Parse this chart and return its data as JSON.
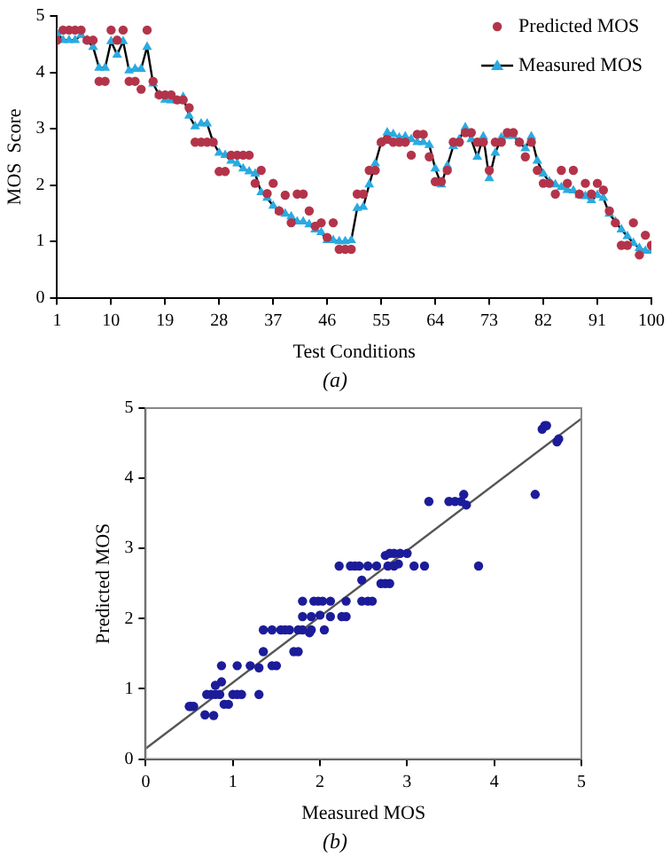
{
  "chart_data": [
    {
      "type": "line",
      "xlabel": "Test Conditions",
      "ylabel": "MOS  Score",
      "annotations": [
        "(a)"
      ],
      "x": [
        1,
        2,
        3,
        4,
        5,
        6,
        7,
        8,
        9,
        10,
        11,
        12,
        13,
        14,
        15,
        16,
        17,
        18,
        19,
        20,
        21,
        22,
        23,
        24,
        25,
        26,
        27,
        28,
        29,
        30,
        31,
        32,
        33,
        34,
        35,
        36,
        37,
        38,
        39,
        40,
        41,
        42,
        43,
        44,
        45,
        46,
        47,
        48,
        49,
        50,
        51,
        52,
        53,
        54,
        55,
        56,
        57,
        58,
        59,
        60,
        61,
        62,
        63,
        64,
        65,
        66,
        67,
        68,
        69,
        70,
        71,
        72,
        73,
        74,
        75,
        76,
        77,
        78,
        79,
        80,
        81,
        82,
        83,
        84,
        85,
        86,
        87,
        88,
        89,
        90,
        91,
        92,
        93,
        94,
        95,
        96,
        97,
        98,
        99,
        100
      ],
      "xlim": [
        1,
        100
      ],
      "xticks": [
        1,
        10,
        19,
        28,
        37,
        46,
        55,
        64,
        73,
        82,
        91,
        100
      ],
      "ylim": [
        0,
        5
      ],
      "yticks": [
        0,
        1,
        2,
        3,
        4,
        5
      ],
      "grid": false,
      "legend": "top right",
      "series": [
        {
          "name": "Predicted MOS",
          "type": "scatter",
          "marker": "circle",
          "color": "#b3344a",
          "values": [
            4.57,
            4.75,
            4.75,
            4.75,
            4.75,
            4.57,
            4.57,
            3.84,
            3.84,
            4.75,
            4.57,
            4.75,
            3.84,
            3.84,
            3.7,
            4.75,
            3.84,
            3.6,
            3.6,
            3.6,
            3.51,
            3.51,
            3.37,
            2.76,
            2.76,
            2.76,
            2.76,
            2.24,
            2.24,
            2.53,
            2.53,
            2.53,
            2.53,
            2.03,
            2.26,
            1.85,
            2.03,
            1.54,
            1.82,
            1.33,
            1.84,
            1.84,
            1.54,
            1.27,
            1.33,
            1.07,
            1.33,
            0.86,
            0.86,
            0.86,
            1.84,
            1.84,
            2.26,
            2.26,
            2.76,
            2.81,
            2.76,
            2.76,
            2.76,
            2.53,
            2.9,
            2.9,
            2.5,
            2.06,
            2.06,
            2.26,
            2.76,
            2.76,
            2.93,
            2.93,
            2.76,
            2.76,
            2.26,
            2.76,
            2.76,
            2.93,
            2.93,
            2.76,
            2.5,
            2.76,
            2.26,
            2.03,
            2.03,
            1.84,
            2.26,
            2.03,
            2.26,
            1.84,
            2.03,
            1.84,
            2.03,
            1.91,
            1.54,
            1.33,
            0.93,
            0.93,
            1.33,
            0.76,
            1.11,
            0.93
          ]
        },
        {
          "name": "Measured MOS",
          "type": "line",
          "marker": "triangle",
          "color": "#29abe2",
          "values": [
            4.69,
            4.57,
            4.57,
            4.57,
            4.66,
            4.57,
            4.45,
            4.08,
            4.08,
            4.55,
            4.31,
            4.55,
            4.03,
            4.06,
            4.06,
            4.45,
            3.8,
            3.6,
            3.51,
            3.5,
            3.5,
            3.56,
            3.23,
            3.04,
            3.09,
            3.09,
            2.76,
            2.57,
            2.53,
            2.43,
            2.38,
            2.29,
            2.24,
            2.2,
            1.87,
            1.77,
            1.63,
            1.54,
            1.49,
            1.44,
            1.35,
            1.35,
            1.3,
            1.21,
            1.16,
            1.02,
            1.02,
            1.0,
            1.0,
            1.02,
            1.59,
            1.61,
            2.01,
            2.38,
            2.76,
            2.93,
            2.9,
            2.84,
            2.86,
            2.81,
            2.76,
            2.76,
            2.71,
            2.29,
            2.01,
            2.34,
            2.69,
            2.81,
            3.02,
            2.81,
            2.5,
            2.86,
            2.12,
            2.57,
            2.84,
            2.87,
            2.87,
            2.76,
            2.65,
            2.86,
            2.43,
            2.2,
            2.06,
            2.01,
            1.96,
            1.91,
            1.9,
            1.82,
            1.8,
            1.73,
            1.82,
            1.77,
            1.49,
            1.35,
            1.21,
            1.09,
            0.97,
            0.88,
            0.83,
            0.83
          ]
        }
      ]
    },
    {
      "type": "scatter",
      "xlabel": "Measured MOS",
      "ylabel": "Predicted MOS",
      "annotations": [
        "(b)"
      ],
      "xlim": [
        0,
        5
      ],
      "xticks": [
        0,
        1,
        2,
        3,
        4,
        5
      ],
      "ylim": [
        0,
        5
      ],
      "yticks": [
        0,
        1,
        2,
        3,
        4,
        5
      ],
      "grid": false,
      "series": [
        {
          "type": "scatter",
          "marker": "circle",
          "color": "#1c1c9a",
          "x": [
            0.5,
            0.55,
            0.52,
            0.7,
            0.75,
            0.8,
            0.68,
            0.78,
            0.8,
            0.87,
            0.87,
            0.85,
            0.9,
            0.95,
            1.0,
            1.05,
            1.1,
            1.05,
            1.2,
            1.3,
            1.3,
            1.35,
            1.35,
            1.45,
            1.45,
            1.5,
            1.55,
            1.6,
            1.65,
            1.7,
            1.75,
            1.75,
            1.8,
            1.8,
            1.8,
            1.88,
            1.9,
            1.9,
            1.93,
            1.98,
            2.0,
            2.03,
            2.05,
            2.12,
            2.12,
            2.22,
            2.25,
            2.3,
            2.3,
            2.35,
            2.4,
            2.45,
            2.48,
            2.48,
            2.55,
            2.55,
            2.6,
            2.65,
            2.7,
            2.75,
            2.75,
            2.78,
            2.8,
            2.8,
            2.85,
            2.85,
            2.9,
            2.92,
            3.0,
            3.08,
            3.2,
            3.25,
            3.48,
            3.55,
            3.62,
            3.65,
            3.68,
            3.82,
            4.47,
            4.55,
            4.58,
            4.6,
            4.72,
            4.74
          ],
          "values": [
            0.75,
            0.75,
            0.75,
            0.92,
            0.92,
            0.92,
            0.63,
            0.62,
            1.05,
            1.1,
            1.33,
            0.92,
            0.78,
            0.78,
            0.92,
            0.92,
            0.92,
            1.33,
            1.33,
            1.3,
            0.92,
            1.53,
            1.84,
            1.84,
            1.33,
            1.33,
            1.84,
            1.84,
            1.84,
            1.53,
            1.53,
            1.84,
            1.84,
            2.25,
            2.03,
            1.8,
            1.84,
            2.03,
            2.25,
            2.25,
            2.05,
            2.25,
            1.84,
            2.03,
            2.25,
            2.75,
            2.03,
            2.03,
            2.25,
            2.75,
            2.75,
            2.75,
            2.55,
            2.25,
            2.75,
            2.25,
            2.25,
            2.75,
            2.5,
            2.9,
            2.5,
            2.75,
            2.5,
            2.93,
            2.75,
            2.93,
            2.78,
            2.93,
            2.93,
            2.75,
            2.75,
            3.67,
            3.67,
            3.67,
            3.67,
            3.77,
            3.62,
            2.75,
            3.77,
            4.7,
            4.75,
            4.75,
            4.52,
            4.56
          ]
        },
        {
          "type": "line",
          "marker": "none",
          "color": "#555555",
          "x": [
            0,
            5
          ],
          "values": [
            0.15,
            4.85
          ]
        }
      ]
    }
  ]
}
